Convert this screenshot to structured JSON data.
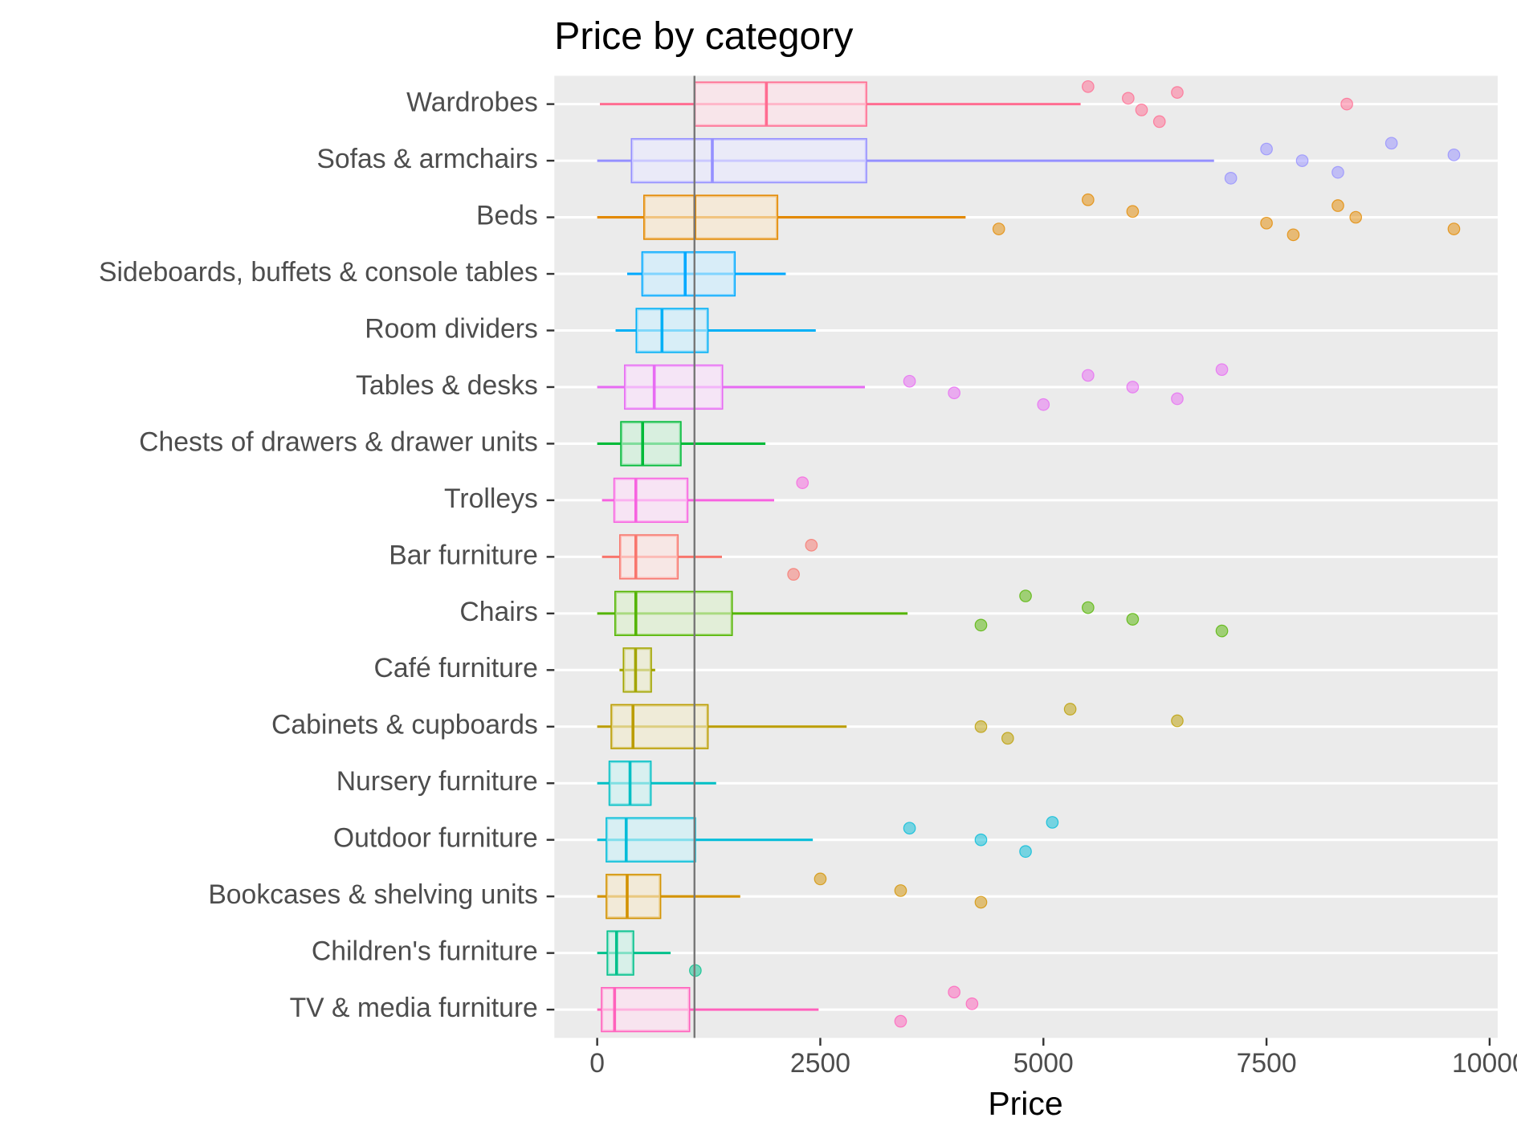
{
  "chart_data": {
    "type": "boxplot",
    "title": "Price by category",
    "x_label": "Price",
    "xlim": [
      -480,
      10090
    ],
    "xticks": [
      0,
      2500,
      5000,
      7500,
      10000
    ],
    "reference_line": 1090,
    "grid": true,
    "series": [
      {
        "name": "Wardrobes",
        "color": "#FF6C91",
        "whisker_low": 30,
        "q1": 1094,
        "median": 1896,
        "q3": 3012,
        "whisker_high": 5417,
        "outliers": [
          5500,
          5950,
          6100,
          6300,
          6500,
          8400
        ]
      },
      {
        "name": "Sofas & armchairs",
        "color": "#9590FF",
        "whisker_low": 0,
        "q1": 390,
        "median": 1290,
        "q3": 3012,
        "whisker_high": 6912,
        "outliers": [
          7100,
          7500,
          7900,
          8300,
          8900,
          9600
        ]
      },
      {
        "name": "Beds",
        "color": "#E38900",
        "whisker_low": 0,
        "q1": 530,
        "median": 1094,
        "q3": 2015,
        "whisker_high": 4128,
        "outliers": [
          4500,
          5500,
          6000,
          7500,
          7800,
          8300,
          8500,
          9600
        ]
      },
      {
        "name": "Sideboards, buffets & console tables",
        "color": "#00A9FF",
        "whisker_low": 336,
        "q1": 509,
        "median": 986,
        "q3": 1538,
        "whisker_high": 2113,
        "outliers": []
      },
      {
        "name": "Room dividers",
        "color": "#00B0F6",
        "whisker_low": 206,
        "q1": 444,
        "median": 726,
        "q3": 1235,
        "whisker_high": 2449,
        "outliers": []
      },
      {
        "name": "Tables & desks",
        "color": "#E76BF3",
        "whisker_low": 0,
        "q1": 314,
        "median": 639,
        "q3": 1398,
        "whisker_high": 3000,
        "outliers": [
          3500,
          4000,
          5000,
          5500,
          6000,
          6500,
          7000
        ]
      },
      {
        "name": "Chests of drawers & drawer units",
        "color": "#00BA38",
        "whisker_low": 0,
        "q1": 271,
        "median": 509,
        "q3": 932,
        "whisker_high": 1885,
        "outliers": []
      },
      {
        "name": "Trolleys",
        "color": "#F763E0",
        "whisker_low": 54,
        "q1": 195,
        "median": 433,
        "q3": 1008,
        "whisker_high": 1983,
        "outliers": [
          2300
        ]
      },
      {
        "name": "Bar furniture",
        "color": "#F8766D",
        "whisker_low": 54,
        "q1": 260,
        "median": 433,
        "q3": 899,
        "whisker_high": 1398,
        "outliers": [
          2200,
          2400
        ]
      },
      {
        "name": "Chairs",
        "color": "#53B400",
        "whisker_low": 0,
        "q1": 206,
        "median": 433,
        "q3": 1506,
        "whisker_high": 3478,
        "outliers": [
          4300,
          4800,
          5500,
          6000,
          7000
        ]
      },
      {
        "name": "Café furniture",
        "color": "#A3A500",
        "whisker_low": 250,
        "q1": 300,
        "median": 430,
        "q3": 600,
        "whisker_high": 650,
        "outliers": []
      },
      {
        "name": "Cabinets & cupboards",
        "color": "#BB9D00",
        "whisker_low": 0,
        "q1": 163,
        "median": 401,
        "q3": 1235,
        "whisker_high": 2795,
        "outliers": [
          4300,
          4600,
          5300,
          6500
        ]
      },
      {
        "name": "Nursery furniture",
        "color": "#00BFC4",
        "whisker_low": 0,
        "q1": 141,
        "median": 368,
        "q3": 596,
        "whisker_high": 1333,
        "outliers": []
      },
      {
        "name": "Outdoor furniture",
        "color": "#00BCD8",
        "whisker_low": 0,
        "q1": 108,
        "median": 325,
        "q3": 1094,
        "whisker_high": 2416,
        "outliers": [
          3500,
          4300,
          4800,
          5100
        ]
      },
      {
        "name": "Bookcases & shelving units",
        "color": "#D39200",
        "whisker_low": 0,
        "q1": 108,
        "median": 336,
        "q3": 704,
        "whisker_high": 1603,
        "outliers": [
          2500,
          3400,
          4300
        ]
      },
      {
        "name": "Children's furniture",
        "color": "#00C08B",
        "whisker_low": 0,
        "q1": 119,
        "median": 217,
        "q3": 401,
        "whisker_high": 823,
        "outliers": [
          1100
        ]
      },
      {
        "name": "TV & media furniture",
        "color": "#FF62BC",
        "whisker_low": 0,
        "q1": 54,
        "median": 195,
        "q3": 1029,
        "whisker_high": 2481,
        "outliers": [
          3400,
          4000,
          4200
        ]
      }
    ]
  }
}
